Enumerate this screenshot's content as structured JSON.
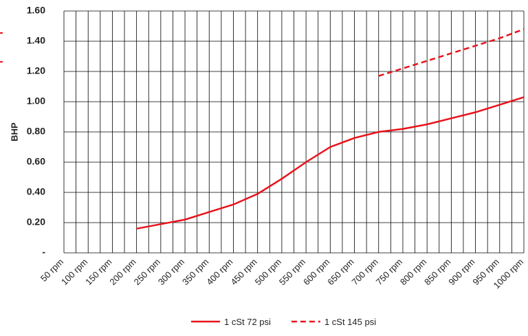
{
  "chart_data": {
    "type": "line",
    "y_label": "BHP",
    "categories": [
      "50 rpm",
      "100 rpm",
      "150 rpm",
      "200 rpm",
      "250 rpm",
      "300 rpm",
      "350 rpm",
      "400 rpm",
      "450 rpm",
      "500 rpm",
      "550 rpm",
      "600 rpm",
      "650 rpm",
      "700 rpm",
      "750 rpm",
      "800 rpm",
      "850 rpm",
      "900 rpm",
      "950 rpm",
      "1000 rpm"
    ],
    "series": [
      {
        "name": "1 cSt 72 psi",
        "color": "#e8121b",
        "dash": false,
        "values": [
          null,
          null,
          null,
          0.16,
          0.19,
          0.22,
          0.27,
          0.32,
          0.39,
          0.49,
          0.6,
          0.7,
          0.76,
          0.8,
          0.82,
          0.85,
          0.89,
          0.93,
          0.98,
          1.03
        ]
      },
      {
        "name": "1 cSt 145 psi",
        "color": "#e8121b",
        "dash": true,
        "values": [
          null,
          null,
          null,
          null,
          null,
          null,
          null,
          null,
          null,
          null,
          null,
          null,
          null,
          1.17,
          1.22,
          1.27,
          1.32,
          1.37,
          1.42,
          1.48
        ]
      }
    ],
    "ylim": [
      0,
      1.6
    ],
    "yticks": [
      {
        "value": 0,
        "label": "-"
      },
      {
        "value": 0.2,
        "label": "0.20"
      },
      {
        "value": 0.4,
        "label": "0.40"
      },
      {
        "value": 0.6,
        "label": "0.60"
      },
      {
        "value": 0.8,
        "label": "0.80"
      },
      {
        "value": 1.0,
        "label": "1.00"
      },
      {
        "value": 1.2,
        "label": "1.20"
      },
      {
        "value": 1.4,
        "label": "1.40"
      },
      {
        "value": 1.6,
        "label": "1.60"
      }
    ],
    "grid": true
  }
}
